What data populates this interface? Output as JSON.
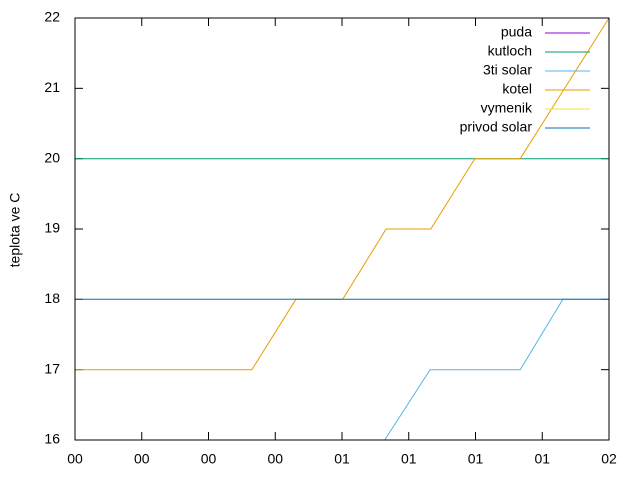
{
  "chart_data": {
    "type": "line",
    "ylabel": "teplota ve C",
    "xlim": [
      0,
      8
    ],
    "xticks": [
      {
        "value": 0,
        "label": "00"
      },
      {
        "value": 1,
        "label": "00"
      },
      {
        "value": 2,
        "label": "00"
      },
      {
        "value": 3,
        "label": "00"
      },
      {
        "value": 4,
        "label": "01"
      },
      {
        "value": 5,
        "label": "01"
      },
      {
        "value": 6,
        "label": "01"
      },
      {
        "value": 7,
        "label": "01"
      },
      {
        "value": 8,
        "label": "02"
      }
    ],
    "ylim": [
      16,
      22
    ],
    "yticks": [
      16,
      17,
      18,
      19,
      20,
      21,
      22
    ],
    "legend": "top-right",
    "series": [
      {
        "name": "puda",
        "color": "#9400d3",
        "x": [],
        "values": []
      },
      {
        "name": "kutloch",
        "color": "#009e73",
        "x": [
          0,
          8
        ],
        "values": [
          20,
          20
        ]
      },
      {
        "name": "3ti solar",
        "color": "#56b4e9",
        "x": [
          4.64,
          5.32,
          6.67,
          7.31,
          8
        ],
        "values": [
          16,
          17,
          17,
          18,
          18
        ]
      },
      {
        "name": "kotel",
        "color": "#e69f00",
        "x": [
          0,
          2.65,
          3.31,
          4.01,
          4.66,
          5.33,
          5.99,
          6.67,
          8
        ],
        "values": [
          17,
          17,
          18,
          18,
          19,
          19,
          20,
          20,
          22
        ]
      },
      {
        "name": "vymenik",
        "color": "#f0e442",
        "x": [],
        "values": []
      },
      {
        "name": "privod solar",
        "color": "#0072b2",
        "x": [
          0,
          8
        ],
        "values": [
          18,
          18
        ]
      }
    ]
  }
}
